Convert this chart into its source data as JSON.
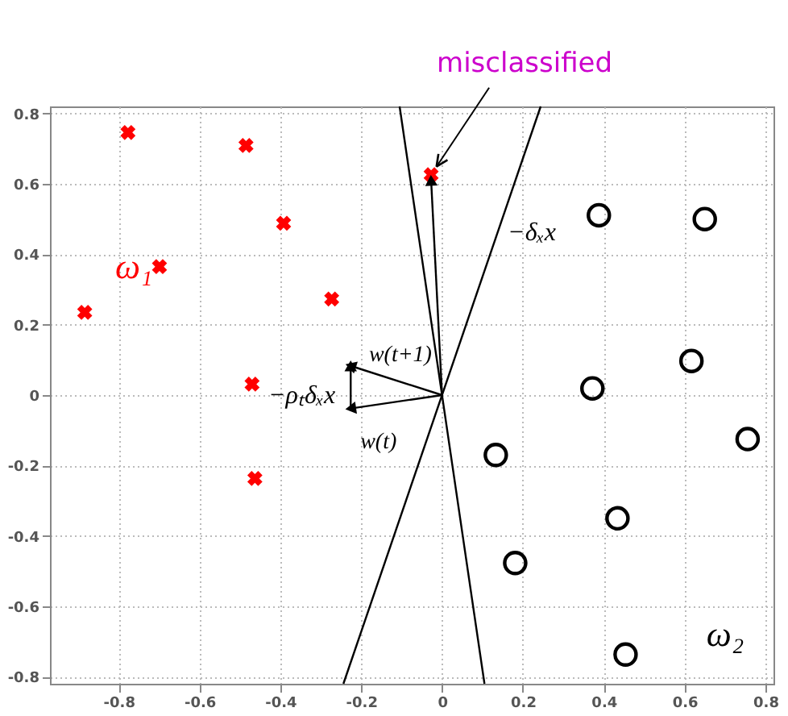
{
  "chart_data": {
    "type": "scatter",
    "xlim": [
      -0.97,
      0.82
    ],
    "ylim": [
      -0.82,
      0.82
    ],
    "xticks": [
      -0.8,
      -0.6,
      -0.4,
      -0.2,
      0,
      0.2,
      0.4,
      0.6,
      0.8
    ],
    "yticks": [
      -0.8,
      -0.6,
      -0.4,
      -0.2,
      0,
      0.2,
      0.4,
      0.6,
      0.8
    ],
    "grid": true,
    "series": [
      {
        "marker": "cross",
        "color": "#ff0000",
        "x": [
          -0.777,
          -0.485,
          -0.392,
          -0.699,
          -0.884,
          -0.273,
          -0.47,
          -0.463,
          -0.027
        ],
        "values": [
          0.746,
          0.709,
          0.488,
          0.365,
          0.235,
          0.273,
          0.031,
          -0.237,
          0.626
        ]
      },
      {
        "marker": "circle",
        "color": "#000000",
        "x": [
          0.388,
          0.65,
          0.617,
          0.372,
          0.756,
          0.133,
          0.434,
          0.181,
          0.454
        ],
        "values": [
          0.511,
          0.5,
          0.097,
          0.019,
          -0.125,
          -0.17,
          -0.35,
          -0.477,
          -0.737
        ]
      },
      {
        "type": "line",
        "color": "#000000",
        "x": [
          -0.244,
          0.244
        ],
        "values": [
          -0.82,
          0.82
        ]
      },
      {
        "type": "line",
        "color": "#000000",
        "x": [
          0.105,
          -0.105
        ],
        "values": [
          -0.82,
          0.82
        ]
      },
      {
        "type": "line",
        "marker": "triangle",
        "color": "#000000",
        "x": [
          0,
          -0.226
        ],
        "values": [
          0,
          -0.038
        ]
      },
      {
        "type": "line",
        "marker": "triangle",
        "color": "#000000",
        "x": [
          0,
          -0.226
        ],
        "values": [
          0,
          0.083
        ]
      },
      {
        "type": "line",
        "marker": "triangle",
        "color": "#000000",
        "x": [
          -0.226,
          -0.226
        ],
        "values": [
          -0.038,
          0.083
        ]
      },
      {
        "type": "line",
        "marker": "triangle",
        "color": "#000000",
        "x": [
          0,
          -0.027
        ],
        "values": [
          0,
          0.61
        ]
      }
    ],
    "annotations": [
      {
        "text": "misclassified",
        "x": -0.027,
        "y": 0.626
      },
      "−δₓx",
      "w(t+1)",
      "−ρₜδₓx",
      "w(t)",
      "ω₁",
      "ω₂"
    ]
  }
}
